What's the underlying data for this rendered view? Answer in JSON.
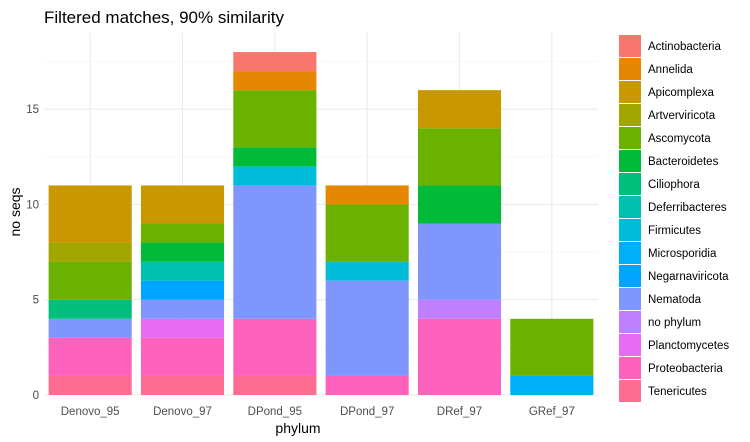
{
  "chart_data": {
    "type": "bar",
    "stacked": true,
    "title": "Filtered matches, 90% similarity",
    "xlabel": "phylum",
    "ylabel": "no seqs",
    "ylim": [
      0,
      19
    ],
    "yticks": [
      0,
      5,
      10,
      15
    ],
    "grid": true,
    "legend_position": "right",
    "categories": [
      "Denovo_95",
      "Denovo_97",
      "DPond_95",
      "DPond_97",
      "DRef_97",
      "GRef_97"
    ],
    "series": [
      {
        "name": "Actinobacteria",
        "color": "#F8766D",
        "values": [
          0,
          0,
          1,
          0,
          0,
          0
        ]
      },
      {
        "name": "Annelida",
        "color": "#E58700",
        "values": [
          0,
          0,
          1,
          1,
          0,
          0
        ]
      },
      {
        "name": "Apicomplexa",
        "color": "#C99800",
        "values": [
          3,
          2,
          0,
          0,
          2,
          0
        ]
      },
      {
        "name": "Artverviricota",
        "color": "#A3A500",
        "values": [
          1,
          0,
          0,
          0,
          0,
          0
        ]
      },
      {
        "name": "Ascomycota",
        "color": "#6BB100",
        "values": [
          2,
          1,
          3,
          3,
          3,
          3
        ]
      },
      {
        "name": "Bacteroidetes",
        "color": "#00BA38",
        "values": [
          0,
          1,
          1,
          0,
          2,
          0
        ]
      },
      {
        "name": "Ciliophora",
        "color": "#00BF7D",
        "values": [
          1,
          0,
          0,
          0,
          0,
          0
        ]
      },
      {
        "name": "Deferribacteres",
        "color": "#00C0AF",
        "values": [
          0,
          1,
          0,
          0,
          0,
          0
        ]
      },
      {
        "name": "Firmicutes",
        "color": "#00BCD8",
        "values": [
          0,
          0,
          1,
          1,
          0,
          0
        ]
      },
      {
        "name": "Microsporidia",
        "color": "#00B0F6",
        "values": [
          0,
          0,
          0,
          0,
          0,
          1
        ]
      },
      {
        "name": "Negarnaviricota",
        "color": "#00A5FF",
        "values": [
          0,
          1,
          0,
          0,
          0,
          0
        ]
      },
      {
        "name": "Nematoda",
        "color": "#7F96FF",
        "values": [
          1,
          1,
          7,
          5,
          4,
          0
        ]
      },
      {
        "name": "no phylum",
        "color": "#BF80FF",
        "values": [
          0,
          0,
          0,
          0,
          1,
          0
        ]
      },
      {
        "name": "Planctomycetes",
        "color": "#E76BF3",
        "values": [
          0,
          1,
          0,
          0,
          0,
          0
        ]
      },
      {
        "name": "Proteobacteria",
        "color": "#FF62BC",
        "values": [
          2,
          2,
          3,
          1,
          4,
          0
        ]
      },
      {
        "name": "Tenericutes",
        "color": "#FF6C91",
        "values": [
          1,
          1,
          1,
          0,
          0,
          0
        ]
      }
    ]
  }
}
